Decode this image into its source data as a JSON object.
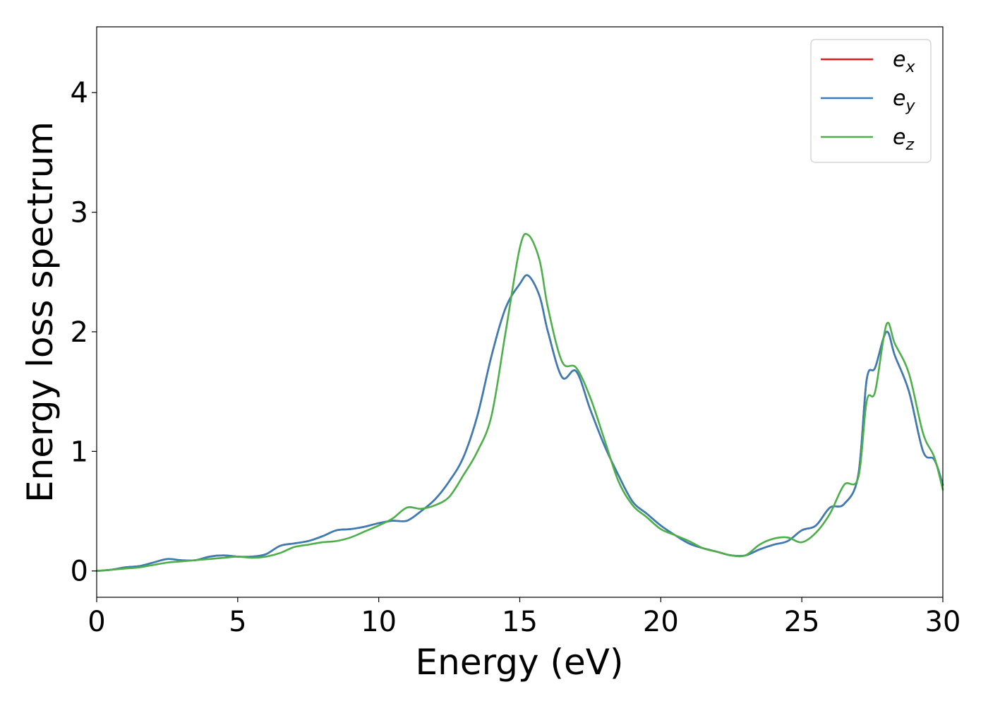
{
  "chart_data": {
    "type": "line",
    "title": "",
    "xlabel": "Energy (eV)",
    "ylabel": "Energy loss spectrum",
    "xlim": [
      0,
      30
    ],
    "ylim": [
      -0.22,
      4.55
    ],
    "x_ticks": [
      0,
      5,
      10,
      15,
      20,
      25,
      30
    ],
    "y_ticks": [
      0,
      1,
      2,
      3,
      4
    ],
    "grid": false,
    "legend_position": "top-right",
    "series": [
      {
        "name": "e",
        "subscript": "x",
        "color": "#e41a1c",
        "x": [
          0,
          0.5,
          1,
          1.5,
          2,
          2.5,
          3,
          3.5,
          4,
          4.5,
          5,
          5.5,
          6,
          6.5,
          7,
          7.5,
          8,
          8.5,
          9,
          9.5,
          10,
          10.5,
          11,
          11.5,
          12,
          12.5,
          13,
          13.5,
          14,
          14.5,
          15,
          15.3,
          15.7,
          16,
          16.5,
          17,
          17.5,
          18,
          18.5,
          19,
          19.5,
          20,
          20.5,
          21,
          21.5,
          22,
          22.5,
          23,
          23.5,
          24,
          24.5,
          25,
          25.5,
          26,
          26.5,
          27,
          27.3,
          27.6,
          28,
          28.3,
          28.8,
          29.3,
          29.7,
          30
        ],
        "y": [
          0.0,
          0.01,
          0.03,
          0.04,
          0.07,
          0.1,
          0.09,
          0.09,
          0.12,
          0.13,
          0.12,
          0.12,
          0.14,
          0.21,
          0.23,
          0.25,
          0.29,
          0.34,
          0.35,
          0.37,
          0.4,
          0.42,
          0.42,
          0.5,
          0.6,
          0.75,
          0.95,
          1.3,
          1.8,
          2.2,
          2.4,
          2.47,
          2.3,
          2.0,
          1.62,
          1.67,
          1.35,
          1.05,
          0.8,
          0.58,
          0.48,
          0.38,
          0.3,
          0.23,
          0.19,
          0.16,
          0.13,
          0.13,
          0.18,
          0.22,
          0.25,
          0.34,
          0.38,
          0.53,
          0.56,
          0.8,
          1.6,
          1.7,
          2.0,
          1.8,
          1.5,
          1.0,
          0.93,
          0.72
        ]
      },
      {
        "name": "e",
        "subscript": "y",
        "color": "#377eb8",
        "x": [
          0,
          0.5,
          1,
          1.5,
          2,
          2.5,
          3,
          3.5,
          4,
          4.5,
          5,
          5.5,
          6,
          6.5,
          7,
          7.5,
          8,
          8.5,
          9,
          9.5,
          10,
          10.5,
          11,
          11.5,
          12,
          12.5,
          13,
          13.5,
          14,
          14.5,
          15,
          15.3,
          15.7,
          16,
          16.5,
          17,
          17.5,
          18,
          18.5,
          19,
          19.5,
          20,
          20.5,
          21,
          21.5,
          22,
          22.5,
          23,
          23.5,
          24,
          24.5,
          25,
          25.5,
          26,
          26.5,
          27,
          27.3,
          27.6,
          28,
          28.3,
          28.8,
          29.3,
          29.7,
          30
        ],
        "y": [
          0.0,
          0.01,
          0.03,
          0.04,
          0.07,
          0.1,
          0.09,
          0.09,
          0.12,
          0.13,
          0.12,
          0.12,
          0.14,
          0.21,
          0.23,
          0.25,
          0.29,
          0.34,
          0.35,
          0.37,
          0.4,
          0.42,
          0.42,
          0.5,
          0.6,
          0.75,
          0.95,
          1.3,
          1.8,
          2.2,
          2.4,
          2.47,
          2.3,
          2.0,
          1.62,
          1.67,
          1.35,
          1.05,
          0.8,
          0.58,
          0.48,
          0.38,
          0.3,
          0.23,
          0.19,
          0.16,
          0.13,
          0.13,
          0.18,
          0.22,
          0.25,
          0.34,
          0.38,
          0.53,
          0.56,
          0.8,
          1.6,
          1.7,
          2.0,
          1.8,
          1.5,
          1.0,
          0.93,
          0.72
        ]
      },
      {
        "name": "e",
        "subscript": "z",
        "color": "#4daf4a",
        "x": [
          0,
          0.5,
          1,
          1.5,
          2,
          2.5,
          3,
          3.5,
          4,
          4.5,
          5,
          5.5,
          6,
          6.5,
          7,
          7.5,
          8,
          8.5,
          9,
          9.5,
          10,
          10.5,
          11,
          11.5,
          12,
          12.5,
          13,
          13.5,
          14,
          14.5,
          15,
          15.3,
          15.7,
          16,
          16.5,
          17,
          17.5,
          18,
          18.5,
          19,
          19.5,
          20,
          20.5,
          21,
          21.5,
          22,
          22.5,
          23,
          23.5,
          24,
          24.5,
          25,
          25.5,
          26,
          26.5,
          27,
          27.3,
          27.6,
          28,
          28.3,
          28.8,
          29.3,
          29.7,
          30
        ],
        "y": [
          0.0,
          0.01,
          0.02,
          0.03,
          0.05,
          0.07,
          0.08,
          0.09,
          0.1,
          0.11,
          0.12,
          0.11,
          0.12,
          0.15,
          0.2,
          0.22,
          0.24,
          0.25,
          0.28,
          0.33,
          0.38,
          0.44,
          0.53,
          0.52,
          0.55,
          0.62,
          0.8,
          1.0,
          1.3,
          2.0,
          2.7,
          2.81,
          2.6,
          2.2,
          1.75,
          1.7,
          1.45,
          1.1,
          0.75,
          0.55,
          0.45,
          0.35,
          0.3,
          0.25,
          0.19,
          0.16,
          0.13,
          0.13,
          0.22,
          0.27,
          0.28,
          0.24,
          0.32,
          0.48,
          0.72,
          0.78,
          1.42,
          1.5,
          2.06,
          1.9,
          1.65,
          1.15,
          0.95,
          0.68
        ]
      }
    ]
  }
}
